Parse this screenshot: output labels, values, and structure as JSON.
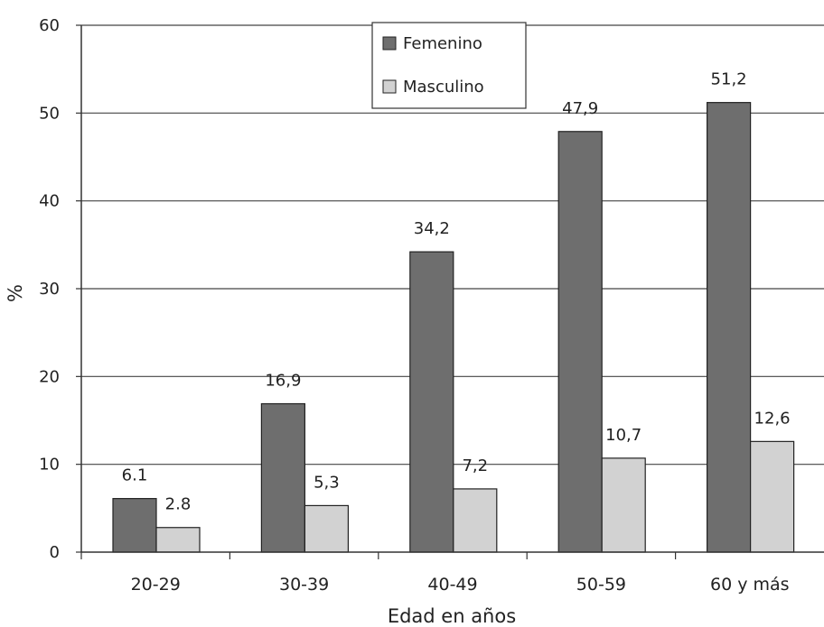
{
  "chart_data": {
    "type": "bar",
    "title": "",
    "xlabel": "Edad en años",
    "ylabel": "%",
    "ylim": [
      0,
      60
    ],
    "yticks": [
      "0",
      "10",
      "20",
      "30",
      "40",
      "50",
      "60"
    ],
    "grid": true,
    "legend": "top-center",
    "categories": [
      "20-29",
      "30-39",
      "40-49",
      "50-59",
      "60 y más"
    ],
    "series": [
      {
        "name": "Femenino",
        "values": [
          6.1,
          16.9,
          34.2,
          47.9,
          51.2
        ],
        "labels": [
          "6.1",
          "16,9",
          "34,2",
          "47,9",
          "51,2"
        ],
        "color": "#6e6e6e"
      },
      {
        "name": "Masculino",
        "values": [
          2.8,
          5.3,
          7.2,
          10.7,
          12.6
        ],
        "labels": [
          "2.8",
          "5,3",
          "7,2",
          "10,7",
          "12,6"
        ],
        "color": "#d2d2d2"
      }
    ]
  }
}
